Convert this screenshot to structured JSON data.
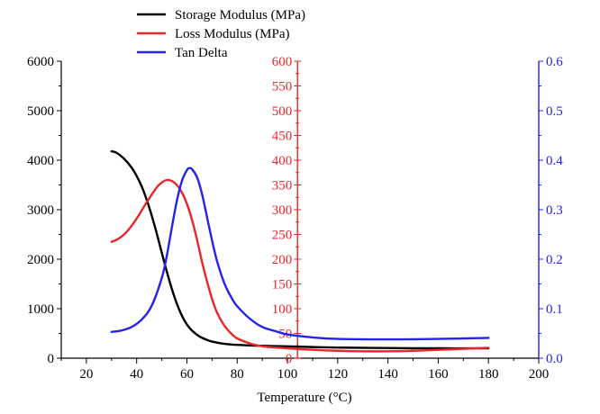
{
  "chart_data": {
    "type": "line",
    "xlabel": "Temperature (°C)",
    "xlim": [
      10,
      200
    ],
    "xticks": [
      20,
      40,
      60,
      80,
      100,
      120,
      140,
      160,
      180,
      200
    ],
    "axes": [
      {
        "id": "left",
        "color": "#000000",
        "ylim": [
          0,
          6000
        ],
        "ticks": [
          0,
          1000,
          2000,
          3000,
          4000,
          5000,
          6000
        ]
      },
      {
        "id": "middle",
        "color": "#e8262b",
        "ylim": [
          0,
          600
        ],
        "ticks": [
          0,
          50,
          100,
          150,
          200,
          250,
          300,
          350,
          400,
          450,
          500,
          550,
          600
        ],
        "at_x": 104
      },
      {
        "id": "right",
        "color": "#2323f0",
        "ylim": [
          0,
          0.6
        ],
        "ticks": [
          0.0,
          0.1,
          0.2,
          0.3,
          0.4,
          0.5,
          0.6
        ],
        "tick_labels": [
          "0.0",
          "0.1",
          "0.2",
          "0.3",
          "0.4",
          "0.5",
          "0.6"
        ]
      }
    ],
    "series": [
      {
        "name": "Storage Modulus (MPa)",
        "color": "#000000",
        "axis": "left",
        "x": [
          30,
          32,
          35,
          38,
          40,
          42,
          44,
          46,
          48,
          50,
          52,
          54,
          56,
          58,
          60,
          62,
          65,
          68,
          70,
          75,
          80,
          90,
          100,
          110,
          120,
          140,
          160,
          180
        ],
        "y": [
          4180,
          4150,
          4030,
          3850,
          3680,
          3470,
          3200,
          2880,
          2520,
          2130,
          1750,
          1400,
          1100,
          860,
          680,
          560,
          440,
          370,
          335,
          290,
          270,
          250,
          240,
          225,
          215,
          205,
          200,
          200
        ]
      },
      {
        "name": "Loss Modulus (MPa)",
        "color": "#e8262b",
        "axis": "middle",
        "x": [
          30,
          33,
          36,
          40,
          44,
          48,
          50,
          52,
          54,
          56,
          58,
          60,
          62,
          64,
          66,
          68,
          70,
          72,
          75,
          78,
          80,
          85,
          90,
          100,
          110,
          120,
          130,
          140,
          150,
          160,
          170,
          180
        ],
        "y": [
          235,
          242,
          255,
          282,
          315,
          345,
          355,
          360,
          358,
          350,
          335,
          312,
          280,
          240,
          195,
          155,
          120,
          92,
          65,
          48,
          40,
          30,
          24,
          20,
          17,
          15,
          14,
          14,
          15,
          17,
          19,
          21
        ]
      },
      {
        "name": "Tan Delta",
        "color": "#2323f0",
        "axis": "right",
        "x": [
          30,
          34,
          38,
          42,
          46,
          50,
          52,
          54,
          56,
          58,
          60,
          61,
          62,
          64,
          66,
          68,
          70,
          72,
          75,
          78,
          80,
          85,
          90,
          95,
          100,
          110,
          120,
          140,
          160,
          180
        ],
        "y": [
          0.053,
          0.056,
          0.063,
          0.078,
          0.106,
          0.162,
          0.207,
          0.264,
          0.318,
          0.358,
          0.38,
          0.384,
          0.382,
          0.366,
          0.332,
          0.285,
          0.238,
          0.196,
          0.15,
          0.12,
          0.105,
          0.08,
          0.063,
          0.055,
          0.048,
          0.042,
          0.039,
          0.038,
          0.039,
          0.041
        ]
      }
    ],
    "legend": {
      "placement": "top-center"
    }
  }
}
